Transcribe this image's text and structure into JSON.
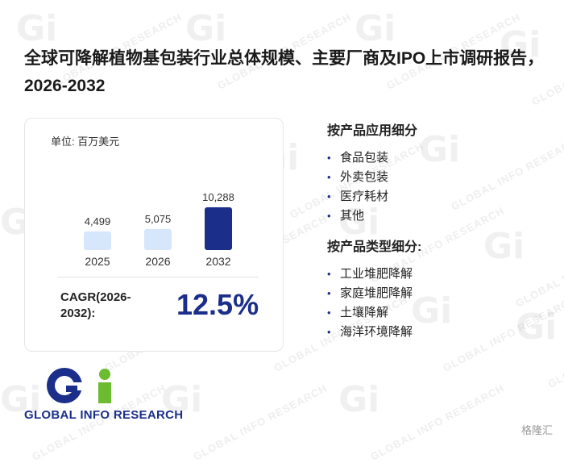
{
  "title": "全球可降解植物基包装行业总体规模、主要厂商及IPO上市调研报告，2026-2032",
  "card": {
    "unit": "单位: 百万美元",
    "cagr_label": "CAGR(2026-2032):",
    "cagr_value": "12.5%"
  },
  "chart_data": {
    "type": "bar",
    "categories": [
      "2025",
      "2026",
      "2032"
    ],
    "values": [
      4499,
      5075,
      10288
    ],
    "value_labels": [
      "4,499",
      "5,075",
      "10,288"
    ],
    "colors": [
      "#d6e6fb",
      "#d6e6fb",
      "#1b2f8a"
    ],
    "ylim": [
      0,
      10288
    ],
    "title": "",
    "xlabel": "",
    "ylabel": "",
    "grid": false
  },
  "segments": [
    {
      "heading": "按产品应用细分",
      "items": [
        "食品包装",
        "外卖包装",
        "医疗耗材",
        "其他"
      ]
    },
    {
      "heading": "按产品类型细分:",
      "items": [
        "工业堆肥降解",
        "家庭堆肥降解",
        "土壤降解",
        "海洋环境降解"
      ]
    }
  ],
  "logo": {
    "mark": "Gi",
    "text": "GLOBAL INFO RESEARCH",
    "colors": {
      "g": "#1b2f8a",
      "i": "#6dbb2e"
    }
  },
  "watermark": {
    "text": "GLOBAL INFO RESEARCH",
    "mark": "Gi"
  },
  "corner_text": "格隆汇"
}
